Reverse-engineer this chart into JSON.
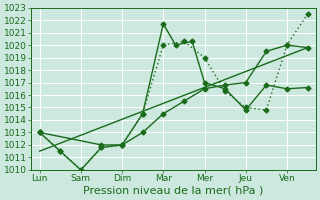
{
  "title": "",
  "xlabel": "Pression niveau de la mer( hPa )",
  "background_color": "#cce8df",
  "grid_color": "#ffffff",
  "line_color": "#1a6b1a",
  "xlabels": [
    "Lun",
    "Sam",
    "Dim",
    "Mar",
    "Mer",
    "Jeu",
    "Ven"
  ],
  "ylim": [
    1010,
    1023
  ],
  "yticks": [
    1010,
    1011,
    1012,
    1013,
    1014,
    1015,
    1016,
    1017,
    1018,
    1019,
    1020,
    1021,
    1022,
    1023
  ],
  "xtick_positions": [
    0,
    1,
    2,
    3,
    4,
    5,
    6
  ],
  "series": [
    {
      "x": [
        0,
        0.5,
        1.0,
        1.5,
        2.0,
        2.5,
        3.0,
        3.3,
        3.7,
        4.0,
        4.5,
        5.0,
        5.5,
        6.0,
        6.5
      ],
      "y": [
        1013,
        1011.5,
        1010,
        1011.8,
        1012,
        1014.5,
        1021.7,
        1020,
        1020.3,
        1017,
        1016.5,
        1014.8,
        1016.8,
        1016.5,
        1016.6
      ],
      "style": "-",
      "marker": "D",
      "markersize": 2.5,
      "linewidth": 1.0
    },
    {
      "x": [
        0,
        0.5,
        1.0,
        1.5,
        2.0,
        2.5,
        3.0,
        3.5,
        4.0,
        4.5,
        5.0,
        5.5,
        6.0,
        6.5
      ],
      "y": [
        1013,
        1011.5,
        1010,
        1011.8,
        1012,
        1014.5,
        1020,
        1020.3,
        1019,
        1016.3,
        1015,
        1014.8,
        1020,
        1022.5
      ],
      "style": ":",
      "marker": "D",
      "markersize": 2.5,
      "linewidth": 1.0
    },
    {
      "x": [
        0,
        1.5,
        2.0,
        2.5,
        3.0,
        3.5,
        4.0,
        4.5,
        5.0,
        5.5,
        6.0,
        6.5
      ],
      "y": [
        1013,
        1012,
        1012,
        1013,
        1014.5,
        1015.5,
        1016.5,
        1016.8,
        1017,
        1019.5,
        1020,
        1019.8
      ],
      "style": "-",
      "marker": "D",
      "markersize": 2.5,
      "linewidth": 1.0
    },
    {
      "x": [
        0,
        6.5
      ],
      "y": [
        1011.5,
        1019.8
      ],
      "style": "-",
      "marker": null,
      "markersize": 0,
      "linewidth": 1.0
    }
  ],
  "xlabel_fontsize": 8,
  "tick_fontsize": 6.5,
  "line_width": 1.0
}
